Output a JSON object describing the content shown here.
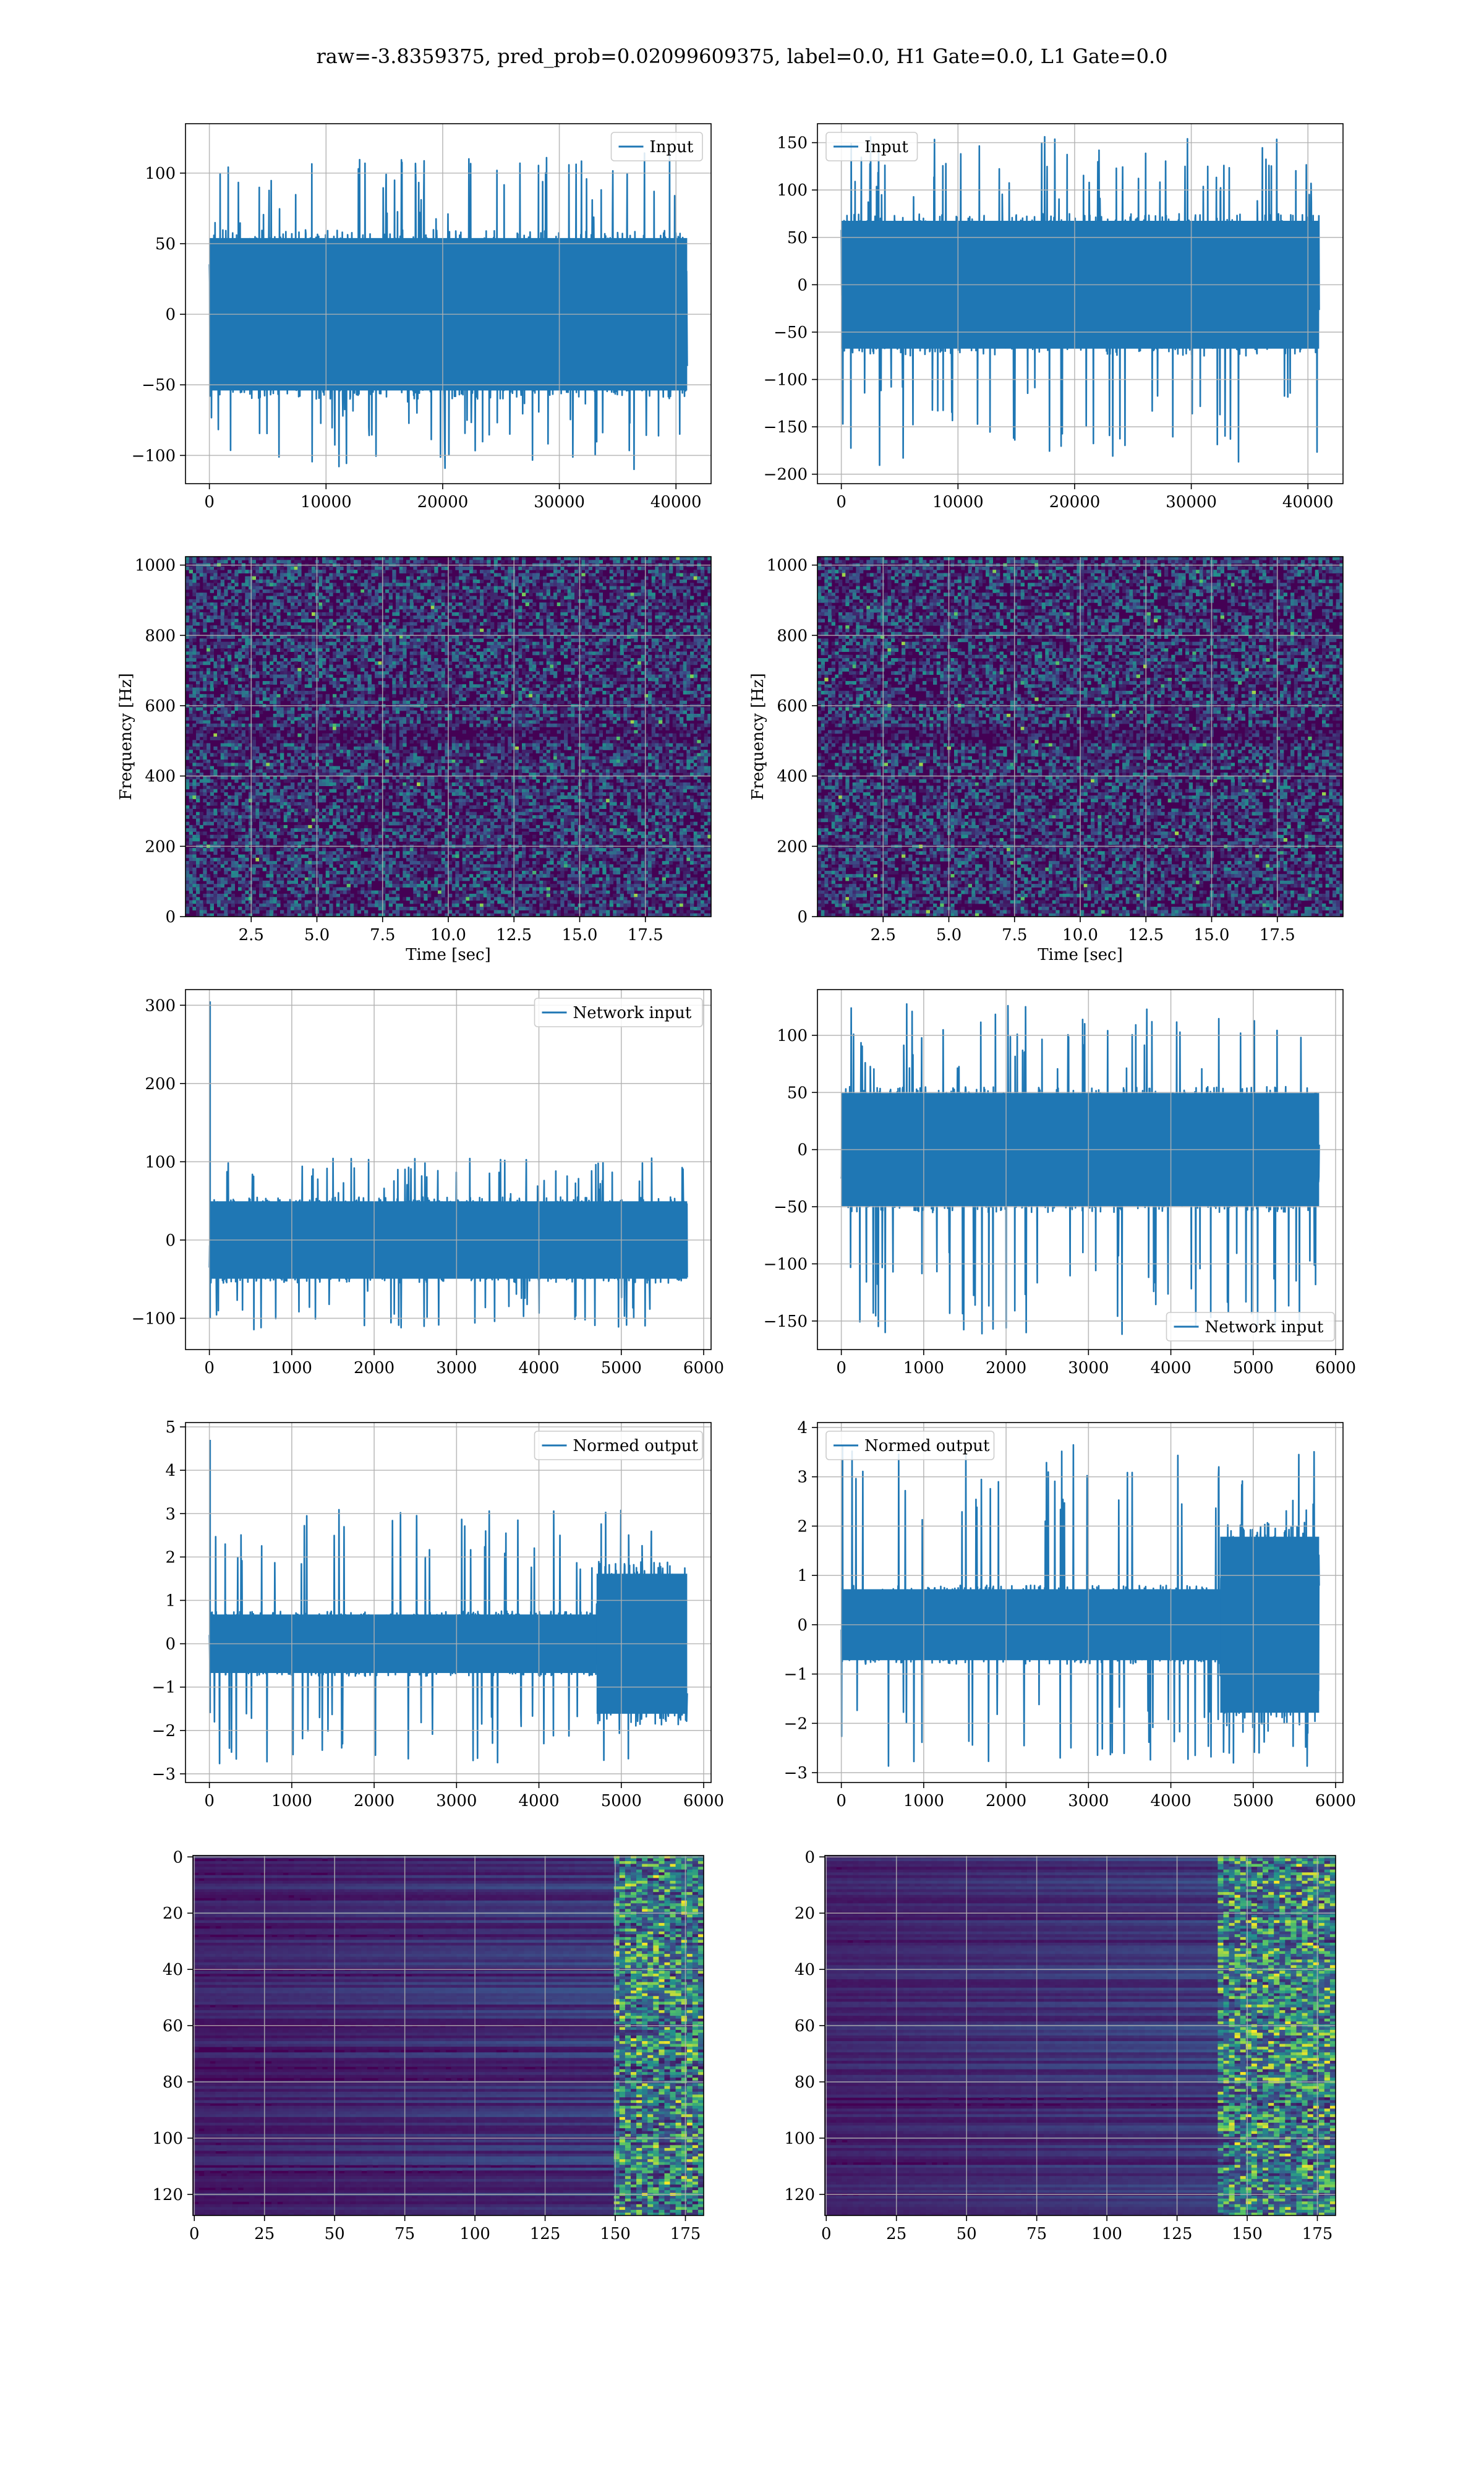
{
  "title": "raw=-3.8359375, pred_prob=0.02099609375, label=0.0, H1 Gate=0.0, L1 Gate=0.0",
  "colors": {
    "line": "#1f77b4",
    "grid": "#b0b0b0",
    "viridis_dark": "#440154",
    "viridis_mid": "#3b528b",
    "viridis_bright": "#fde725"
  },
  "chart_data": [
    {
      "id": "row1-left",
      "type": "line",
      "legend": {
        "label": "Input",
        "loc": "upper right"
      },
      "xlim": [
        -2048,
        43008
      ],
      "ylim": [
        -120,
        135
      ],
      "xticks": [
        0,
        10000,
        20000,
        30000,
        40000
      ],
      "yticks": [
        -100,
        -50,
        0,
        50,
        100
      ],
      "xtick_labels": [
        "0",
        "10000",
        "20000",
        "30000",
        "40000"
      ],
      "ytick_labels": [
        "−100",
        "−50",
        "0",
        "50",
        "100"
      ],
      "n_points": 40960,
      "envelope": {
        "core": 60,
        "peak_max": 115,
        "peak_min": -112
      },
      "grid": true
    },
    {
      "id": "row1-right",
      "type": "line",
      "legend": {
        "label": "Input",
        "loc": "upper left"
      },
      "xlim": [
        -2048,
        43008
      ],
      "ylim": [
        -210,
        170
      ],
      "xticks": [
        0,
        10000,
        20000,
        30000,
        40000
      ],
      "yticks": [
        -200,
        -150,
        -100,
        -50,
        0,
        50,
        100,
        150
      ],
      "xtick_labels": [
        "0",
        "10000",
        "20000",
        "30000",
        "40000"
      ],
      "ytick_labels": [
        "−200",
        "−150",
        "−100",
        "−50",
        "0",
        "50",
        "100",
        "150"
      ],
      "n_points": 40960,
      "envelope": {
        "core": 75,
        "peak_max": 157,
        "peak_min": -195
      },
      "grid": true
    },
    {
      "id": "row2-left",
      "type": "heatmap",
      "subtype": "spectrogram",
      "xlabel": "Time [sec]",
      "ylabel": "Frequency [Hz]",
      "xlim": [
        0,
        20
      ],
      "ylim": [
        0,
        1024
      ],
      "xticks": [
        2.5,
        5.0,
        7.5,
        10.0,
        12.5,
        15.0,
        17.5
      ],
      "yticks": [
        0,
        200,
        400,
        600,
        800,
        1000
      ],
      "xtick_labels": [
        "2.5",
        "5.0",
        "7.5",
        "10.0",
        "12.5",
        "15.0",
        "17.5"
      ],
      "ytick_labels": [
        "0",
        "200",
        "400",
        "600",
        "800",
        "1000"
      ],
      "colormap": "viridis",
      "grid": true
    },
    {
      "id": "row2-right",
      "type": "heatmap",
      "subtype": "spectrogram",
      "xlabel": "Time [sec]",
      "ylabel": "Frequency [Hz]",
      "xlim": [
        0,
        20
      ],
      "ylim": [
        0,
        1024
      ],
      "xticks": [
        2.5,
        5.0,
        7.5,
        10.0,
        12.5,
        15.0,
        17.5
      ],
      "yticks": [
        0,
        200,
        400,
        600,
        800,
        1000
      ],
      "xtick_labels": [
        "2.5",
        "5.0",
        "7.5",
        "10.0",
        "12.5",
        "15.0",
        "17.5"
      ],
      "ytick_labels": [
        "0",
        "200",
        "400",
        "600",
        "800",
        "1000"
      ],
      "colormap": "viridis",
      "grid": true
    },
    {
      "id": "row3-left",
      "type": "line",
      "legend": {
        "label": "Network input",
        "loc": "upper right"
      },
      "xlim": [
        -290,
        6090
      ],
      "ylim": [
        -140,
        320
      ],
      "xticks": [
        0,
        1000,
        2000,
        3000,
        4000,
        5000,
        6000
      ],
      "yticks": [
        -100,
        0,
        100,
        200,
        300
      ],
      "xtick_labels": [
        "0",
        "1000",
        "2000",
        "3000",
        "4000",
        "5000",
        "6000"
      ],
      "ytick_labels": [
        "−100",
        "0",
        "100",
        "200",
        "300"
      ],
      "n_points": 5800,
      "spike": {
        "x": 0,
        "y": 305,
        "y_min": -100
      },
      "envelope": {
        "core": 55,
        "peak_max": 105,
        "peak_min": -115
      },
      "grid": true
    },
    {
      "id": "row3-right",
      "type": "line",
      "legend": {
        "label": "Network input",
        "loc": "lower right"
      },
      "xlim": [
        -290,
        6090
      ],
      "ylim": [
        -175,
        140
      ],
      "xticks": [
        0,
        1000,
        2000,
        3000,
        4000,
        5000,
        6000
      ],
      "yticks": [
        -150,
        -100,
        -50,
        0,
        50,
        100
      ],
      "xtick_labels": [
        "0",
        "1000",
        "2000",
        "3000",
        "4000",
        "5000",
        "6000"
      ],
      "ytick_labels": [
        "−150",
        "−100",
        "−50",
        "0",
        "50",
        "100"
      ],
      "n_points": 5800,
      "envelope": {
        "core": 55,
        "peak_max": 128,
        "peak_min": -162
      },
      "grid": true
    },
    {
      "id": "row4-left",
      "type": "line",
      "legend": {
        "label": "Normed output",
        "loc": "upper right"
      },
      "xlim": [
        -290,
        6090
      ],
      "ylim": [
        -3.2,
        5.1
      ],
      "xticks": [
        0,
        1000,
        2000,
        3000,
        4000,
        5000,
        6000
      ],
      "yticks": [
        -3,
        -2,
        -1,
        0,
        1,
        2,
        3,
        4,
        5
      ],
      "xtick_labels": [
        "0",
        "1000",
        "2000",
        "3000",
        "4000",
        "5000",
        "6000"
      ],
      "ytick_labels": [
        "−3",
        "−2",
        "−1",
        "0",
        "1",
        "2",
        "3",
        "4",
        "5"
      ],
      "n_points": 5800,
      "spike": {
        "x": 0,
        "y": 4.7,
        "y_min": -1.6
      },
      "envelope": {
        "core": 0.75,
        "core_late": 1.9,
        "late_start": 4700,
        "peak_max": 3.1,
        "peak_min": -2.8
      },
      "grid": true
    },
    {
      "id": "row4-right",
      "type": "line",
      "legend": {
        "label": "Normed output",
        "loc": "upper left"
      },
      "xlim": [
        -290,
        6090
      ],
      "ylim": [
        -3.2,
        4.1
      ],
      "xticks": [
        0,
        1000,
        2000,
        3000,
        4000,
        5000,
        6000
      ],
      "yticks": [
        -3,
        -2,
        -1,
        0,
        1,
        2,
        3,
        4
      ],
      "xtick_labels": [
        "0",
        "1000",
        "2000",
        "3000",
        "4000",
        "5000",
        "6000"
      ],
      "ytick_labels": [
        "−3",
        "−2",
        "−1",
        "0",
        "1",
        "2",
        "3",
        "4"
      ],
      "n_points": 5800,
      "envelope": {
        "core": 0.8,
        "core_late": 2.1,
        "late_start": 4600,
        "peak_max": 3.7,
        "peak_min": -2.9
      },
      "grid": true
    },
    {
      "id": "row5-left",
      "type": "heatmap",
      "subtype": "feature-map",
      "xlim": [
        -0.5,
        181.5
      ],
      "ylim": [
        127.5,
        -0.5
      ],
      "xticks": [
        0,
        25,
        50,
        75,
        100,
        125,
        150,
        175
      ],
      "yticks": [
        0,
        20,
        40,
        60,
        80,
        100,
        120
      ],
      "xtick_labels": [
        "0",
        "25",
        "50",
        "75",
        "100",
        "125",
        "150",
        "175"
      ],
      "ytick_labels": [
        "0",
        "20",
        "40",
        "60",
        "80",
        "100",
        "120"
      ],
      "n_rows": 128,
      "n_cols": 182,
      "active_from_col": 150,
      "colormap": "viridis",
      "grid": true
    },
    {
      "id": "row5-right",
      "type": "heatmap",
      "subtype": "feature-map",
      "xlim": [
        -0.5,
        181.5
      ],
      "ylim": [
        127.5,
        -0.5
      ],
      "xticks": [
        0,
        25,
        50,
        75,
        100,
        125,
        150,
        175
      ],
      "yticks": [
        0,
        20,
        40,
        60,
        80,
        100,
        120
      ],
      "xtick_labels": [
        "0",
        "25",
        "50",
        "75",
        "100",
        "125",
        "150",
        "175"
      ],
      "ytick_labels": [
        "0",
        "20",
        "40",
        "60",
        "80",
        "100",
        "120"
      ],
      "n_rows": 128,
      "n_cols": 182,
      "active_from_col": 140,
      "colormap": "viridis",
      "grid": true
    }
  ]
}
